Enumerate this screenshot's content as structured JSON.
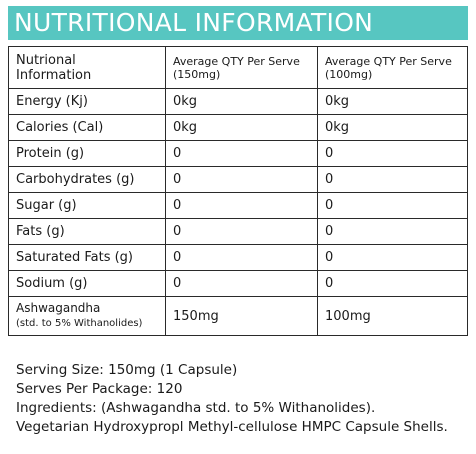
{
  "header": {
    "title": "NUTRITIONAL INFORMATION",
    "banner_color": "#57c6c1"
  },
  "table": {
    "columns": [
      {
        "line1": "Nutrional",
        "line2": "Information"
      },
      {
        "line1": "Average QTY Per Serve",
        "line2": "(150mg)"
      },
      {
        "line1": "Average QTY Per Serve",
        "line2": "(100mg)"
      }
    ],
    "rows": [
      {
        "label": "Energy (Kj)",
        "per_150": "0kg",
        "per_100": "0kg"
      },
      {
        "label": "Calories (Cal)",
        "per_150": "0kg",
        "per_100": "0kg"
      },
      {
        "label": "Protein (g)",
        "per_150": "0",
        "per_100": "0"
      },
      {
        "label": "Carbohydrates (g)",
        "per_150": "0",
        "per_100": "0"
      },
      {
        "label": "Sugar (g)",
        "per_150": "0",
        "per_100": "0"
      },
      {
        "label": "Fats (g)",
        "per_150": "0",
        "per_100": "0"
      },
      {
        "label": "Saturated Fats (g)",
        "per_150": "0",
        "per_100": "0"
      },
      {
        "label": "Sodium (g)",
        "per_150": "0",
        "per_100": "0"
      }
    ],
    "last_row": {
      "label": "Ashwagandha",
      "sublabel": "(std. to 5% Withanolides)",
      "per_150": "150mg",
      "per_100": "100mg"
    }
  },
  "footer": {
    "serving_size": "Serving Size: 150mg (1 Capsule)",
    "serves_per_package": "Serves Per Package: 120",
    "ingredients": "Ingredients: (Ashwagandha std. to 5% Withanolides).",
    "ingredients_cont": "Vegetarian Hydroxypropl Methyl-cellulose HMPC Capsule Shells."
  }
}
